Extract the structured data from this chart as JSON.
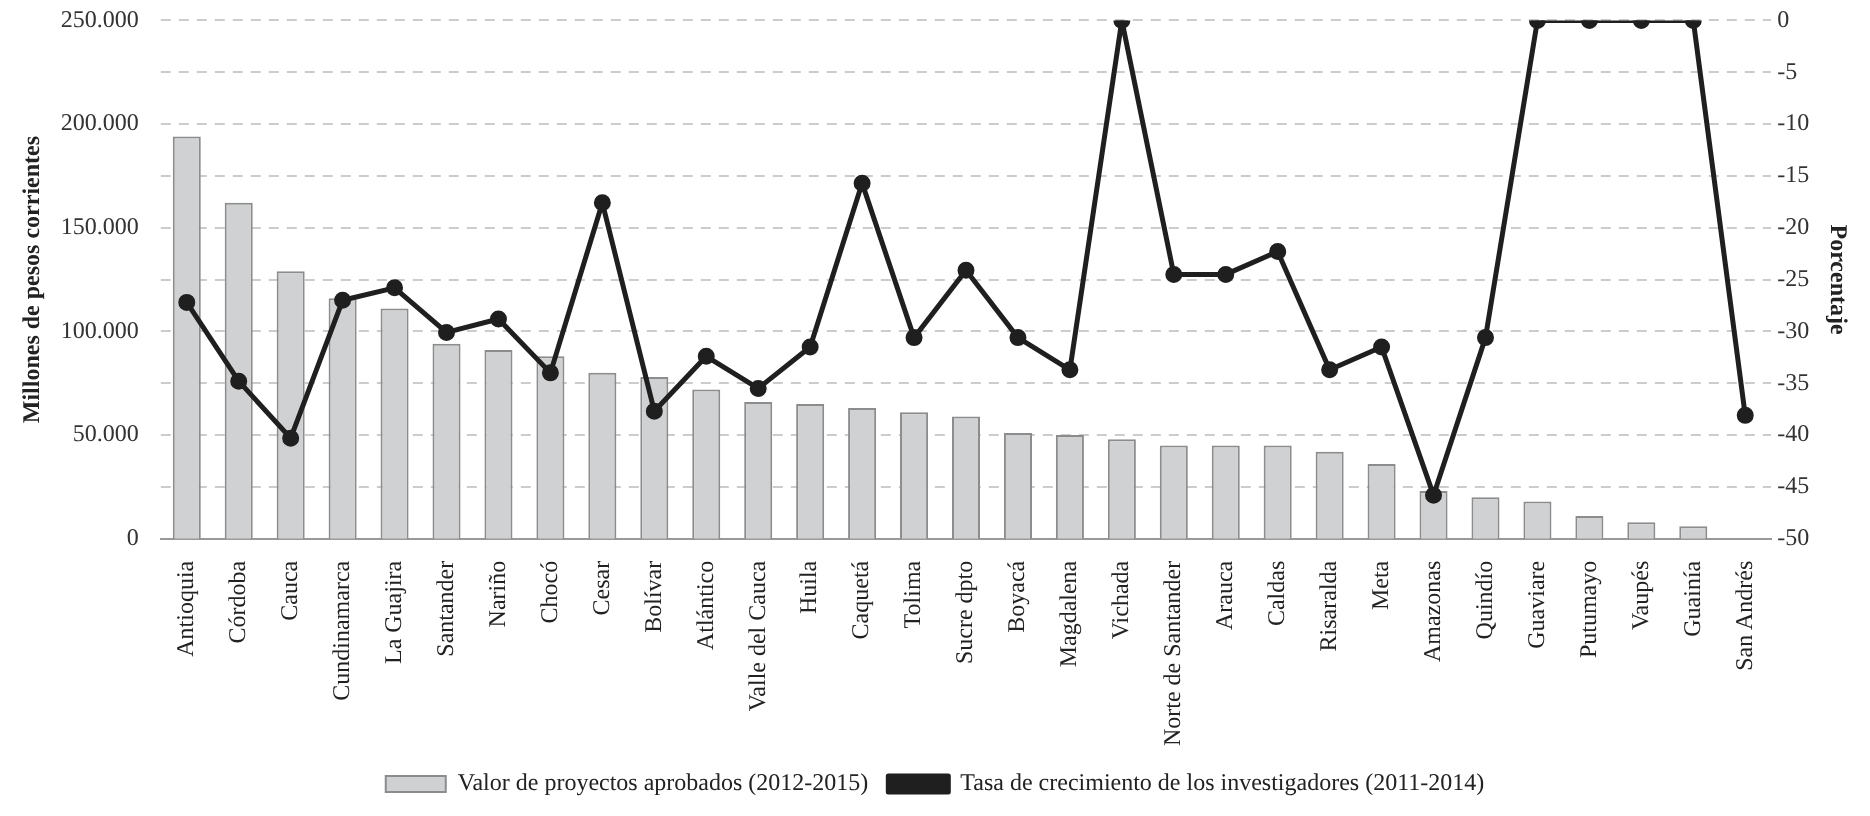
{
  "chart_data": {
    "type": "bar",
    "ylabel": "Millones de pesos corrientes",
    "y2label": "Porcentaje",
    "categories": [
      "Antioquia",
      "Córdoba",
      "Cauca",
      "Cundinamarca",
      "La Guajira",
      "Santander",
      "Nariño",
      "Chocó",
      "Cesar",
      "Bolívar",
      "Atlántico",
      "Valle del Cauca",
      "Huila",
      "Caquetá",
      "Tolima",
      "Sucre dpto",
      "Boyacá",
      "Magdalena",
      "Vichada",
      "Norte de Santander",
      "Arauca",
      "Caldas",
      "Risaralda",
      "Meta",
      "Amazonas",
      "Quindío",
      "Guaviare",
      "Putumayo",
      "Vaupés",
      "Guainía",
      "San Andrés"
    ],
    "series": [
      {
        "name": "Valor de proyectos aprobados (2012-2015)",
        "color": "#d0d1d3",
        "values": [
          194000,
          162000,
          129000,
          116000,
          111000,
          94000,
          91000,
          88000,
          80000,
          78000,
          72000,
          66000,
          65000,
          63000,
          61000,
          59000,
          51000,
          50000,
          48000,
          45000,
          45000,
          45000,
          42000,
          36000,
          23000,
          20000,
          18000,
          11000,
          8000,
          6000,
          0
        ]
      },
      {
        "name": "Tasa de crecimiento de los investigadores (2011-2014)",
        "type": "line",
        "axis": "y2",
        "color": "#1f1f1f",
        "marker": "circle",
        "line_style": "solid",
        "values": [
          -27.2,
          -34.8,
          -40.3,
          -27.0,
          -25.8,
          -30.1,
          -28.8,
          -34.0,
          -17.6,
          -37.7,
          -32.4,
          -35.5,
          -31.5,
          -15.7,
          -30.6,
          -24.1,
          -30.6,
          -33.7,
          0,
          -24.5,
          -24.5,
          -22.3,
          -33.7,
          -31.5,
          -45.8,
          -30.6,
          0,
          0,
          0,
          0,
          -38.1
        ]
      }
    ],
    "ylim": [
      0,
      250000
    ],
    "yticks": [
      {
        "value": 0,
        "label": "0"
      },
      {
        "value": 50000,
        "label": "50.000"
      },
      {
        "value": 100000,
        "label": "100.000"
      },
      {
        "value": 150000,
        "label": "150.000"
      },
      {
        "value": 200000,
        "label": "200.000"
      },
      {
        "value": 250000,
        "label": "250.000"
      }
    ],
    "y2lim": [
      -50,
      0
    ],
    "y2ticks": [
      -50,
      -45,
      -40,
      -35,
      -30,
      -25,
      -20,
      -15,
      -10,
      -5,
      0
    ],
    "grid": true,
    "legend": "bottom"
  }
}
